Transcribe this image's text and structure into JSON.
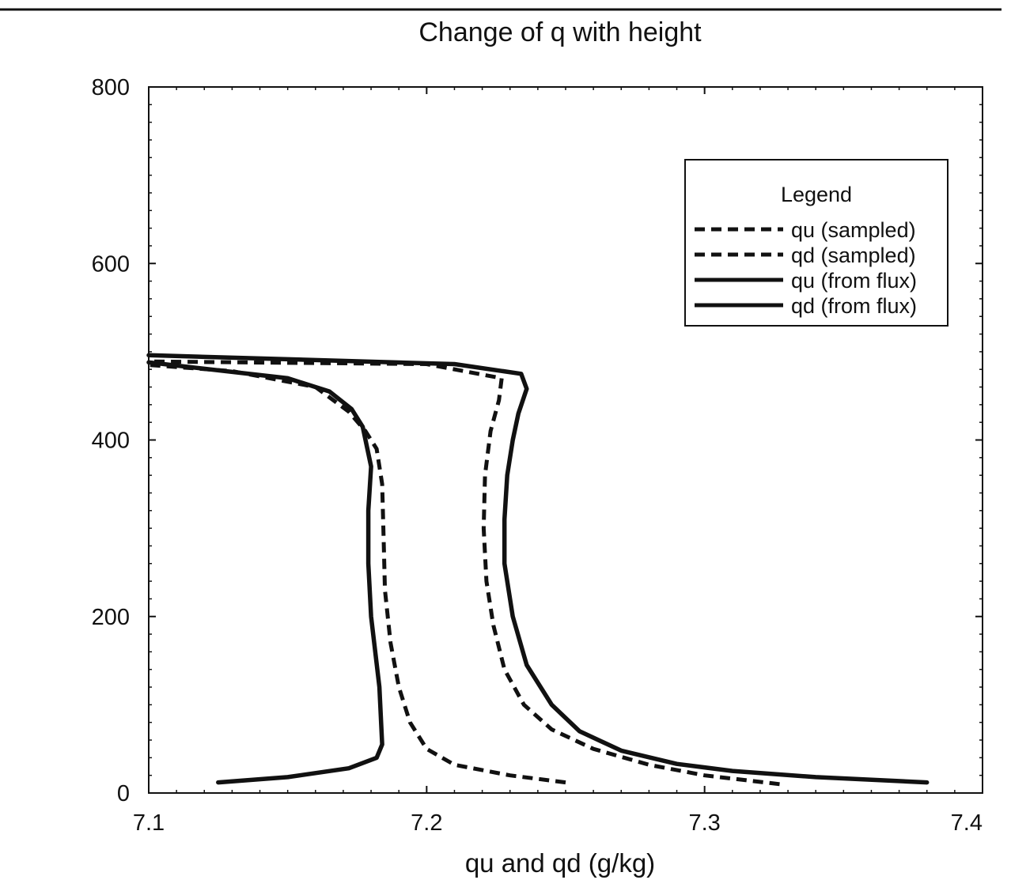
{
  "chart_data": {
    "type": "line",
    "title": "Change of q with height",
    "xlabel": "qu and qd (g/kg)",
    "ylabel": "",
    "xlim": [
      7.1,
      7.4
    ],
    "ylim": [
      0,
      800
    ],
    "x_ticks": [
      "7.1",
      "7.2",
      "7.3",
      "7.4"
    ],
    "y_ticks": [
      "0",
      "200",
      "400",
      "600",
      "800"
    ],
    "grid": false,
    "legend": {
      "title": "Legend",
      "placement": "upper-right"
    },
    "series": [
      {
        "name": "qu (sampled)",
        "style": "dashed",
        "points": [
          [
            7.327,
            10
          ],
          [
            7.3,
            20
          ],
          [
            7.28,
            32
          ],
          [
            7.26,
            50
          ],
          [
            7.245,
            72
          ],
          [
            7.235,
            100
          ],
          [
            7.228,
            140
          ],
          [
            7.224,
            190
          ],
          [
            7.2215,
            240
          ],
          [
            7.2205,
            300
          ],
          [
            7.221,
            360
          ],
          [
            7.223,
            410
          ],
          [
            7.226,
            445
          ],
          [
            7.227,
            470
          ],
          [
            7.2,
            486
          ],
          [
            7.1,
            489
          ]
        ]
      },
      {
        "name": "qd (sampled)",
        "style": "dashed",
        "points": [
          [
            7.25,
            12
          ],
          [
            7.23,
            20
          ],
          [
            7.21,
            32
          ],
          [
            7.2,
            50
          ],
          [
            7.194,
            80
          ],
          [
            7.19,
            120
          ],
          [
            7.187,
            170
          ],
          [
            7.185,
            230
          ],
          [
            7.1845,
            290
          ],
          [
            7.184,
            350
          ],
          [
            7.182,
            390
          ],
          [
            7.178,
            410
          ],
          [
            7.172,
            432
          ],
          [
            7.16,
            460
          ],
          [
            7.13,
            478
          ],
          [
            7.1,
            485
          ]
        ]
      },
      {
        "name": "qu (from flux)",
        "style": "solid",
        "points": [
          [
            7.38,
            12
          ],
          [
            7.34,
            18
          ],
          [
            7.31,
            25
          ],
          [
            7.29,
            33
          ],
          [
            7.27,
            48
          ],
          [
            7.255,
            70
          ],
          [
            7.245,
            100
          ],
          [
            7.236,
            145
          ],
          [
            7.231,
            200
          ],
          [
            7.228,
            260
          ],
          [
            7.228,
            310
          ],
          [
            7.229,
            360
          ],
          [
            7.231,
            400
          ],
          [
            7.233,
            430
          ],
          [
            7.236,
            458
          ],
          [
            7.234,
            475
          ],
          [
            7.21,
            486
          ],
          [
            7.1,
            496
          ]
        ]
      },
      {
        "name": "qd (from flux)",
        "style": "solid",
        "points": [
          [
            7.125,
            12
          ],
          [
            7.15,
            18
          ],
          [
            7.172,
            28
          ],
          [
            7.182,
            40
          ],
          [
            7.184,
            55
          ],
          [
            7.183,
            120
          ],
          [
            7.18,
            200
          ],
          [
            7.179,
            260
          ],
          [
            7.179,
            320
          ],
          [
            7.18,
            370
          ],
          [
            7.177,
            415
          ],
          [
            7.173,
            435
          ],
          [
            7.165,
            455
          ],
          [
            7.15,
            470
          ],
          [
            7.1,
            488
          ]
        ]
      }
    ]
  }
}
